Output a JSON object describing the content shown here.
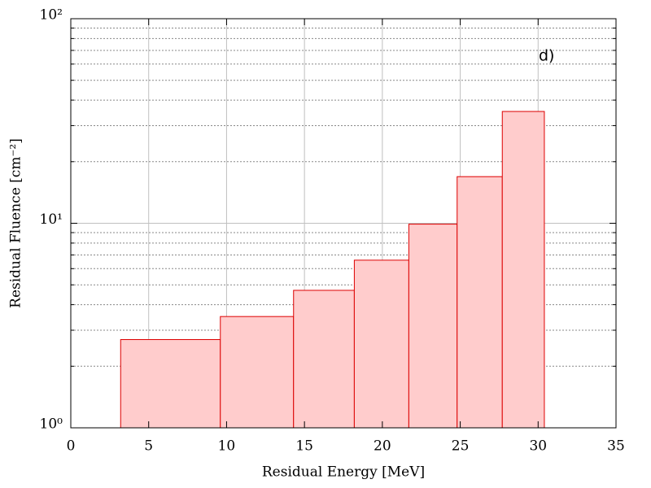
{
  "chart_data": {
    "type": "histogram",
    "xlabel": "Residual Energy [MeV]",
    "ylabel": "Residual Fluence [cm⁻²]",
    "annotation": "d)",
    "bins": [
      3.2,
      9.6,
      14.3,
      18.2,
      21.7,
      24.8,
      27.7,
      30.4
    ],
    "values": [
      2.7,
      3.5,
      4.7,
      6.6,
      9.9,
      16.9,
      35.2
    ],
    "color": "#ffcccc",
    "edgecolor": "#dd0000",
    "xlim": [
      0,
      35
    ],
    "xticks": [
      0,
      5,
      10,
      15,
      20,
      25,
      30,
      35
    ],
    "ylim": [
      1,
      100
    ],
    "yscale": "log",
    "yticks": [
      {
        "value": 1,
        "label": "10⁰"
      },
      {
        "value": 10,
        "label": "10¹"
      },
      {
        "value": 100,
        "label": "10²"
      }
    ],
    "yminor_grid": [
      2,
      3,
      4,
      5,
      6,
      7,
      8,
      9,
      20,
      30,
      40,
      50,
      60,
      70,
      80,
      90
    ],
    "grid": true
  }
}
